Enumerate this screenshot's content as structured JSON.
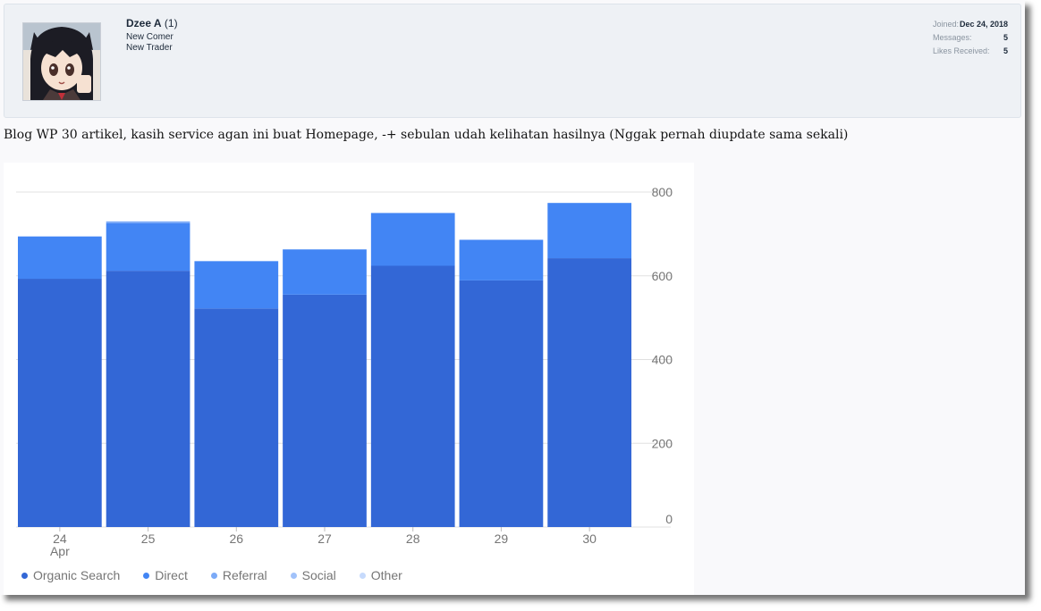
{
  "profile": {
    "username": "Dzee A",
    "badge": "(1)",
    "titles": [
      "New Comer",
      "New Trader"
    ],
    "stats": [
      {
        "label": "Joined:",
        "value": "Dec 24, 2018"
      },
      {
        "label": "Messages:",
        "value": "5"
      },
      {
        "label": "Likes Received:",
        "value": "5"
      }
    ]
  },
  "post": {
    "text": "Blog WP 30 artikel, kasih service agan ini buat Homepage, -+ sebulan udah kelihatan hasilnya (Nggak pernah diupdate sama sekali)"
  },
  "colors": {
    "organic": "#3367d6",
    "direct": "#4285f4",
    "referral": "#7baaf7",
    "social": "#a1c2fa",
    "other": "#c6dafc"
  },
  "chart_data": {
    "type": "bar",
    "stacked": true,
    "categories": [
      "24\nApr",
      "25",
      "26",
      "27",
      "28",
      "29",
      "30"
    ],
    "series": [
      {
        "name": "Organic Search",
        "color": "#3367d6",
        "values": [
          593,
          612,
          522,
          555,
          624,
          589,
          642
        ]
      },
      {
        "name": "Direct",
        "color": "#4285f4",
        "values": [
          101,
          114,
          113,
          108,
          126,
          97,
          132
        ]
      },
      {
        "name": "Referral",
        "color": "#7baaf7",
        "values": [
          0,
          4,
          0,
          0,
          0,
          0,
          0
        ]
      },
      {
        "name": "Social",
        "color": "#a1c2fa",
        "values": [
          0,
          0,
          0,
          0,
          0,
          0,
          0
        ]
      },
      {
        "name": "Other",
        "color": "#c6dafc",
        "values": [
          0,
          0,
          0,
          0,
          0,
          0,
          0
        ]
      }
    ],
    "y_ticks": [
      800,
      600,
      400,
      200,
      0
    ],
    "ylim": [
      0,
      800
    ],
    "y_axis_side": "right",
    "legend_position": "bottom-left",
    "grid": true
  }
}
